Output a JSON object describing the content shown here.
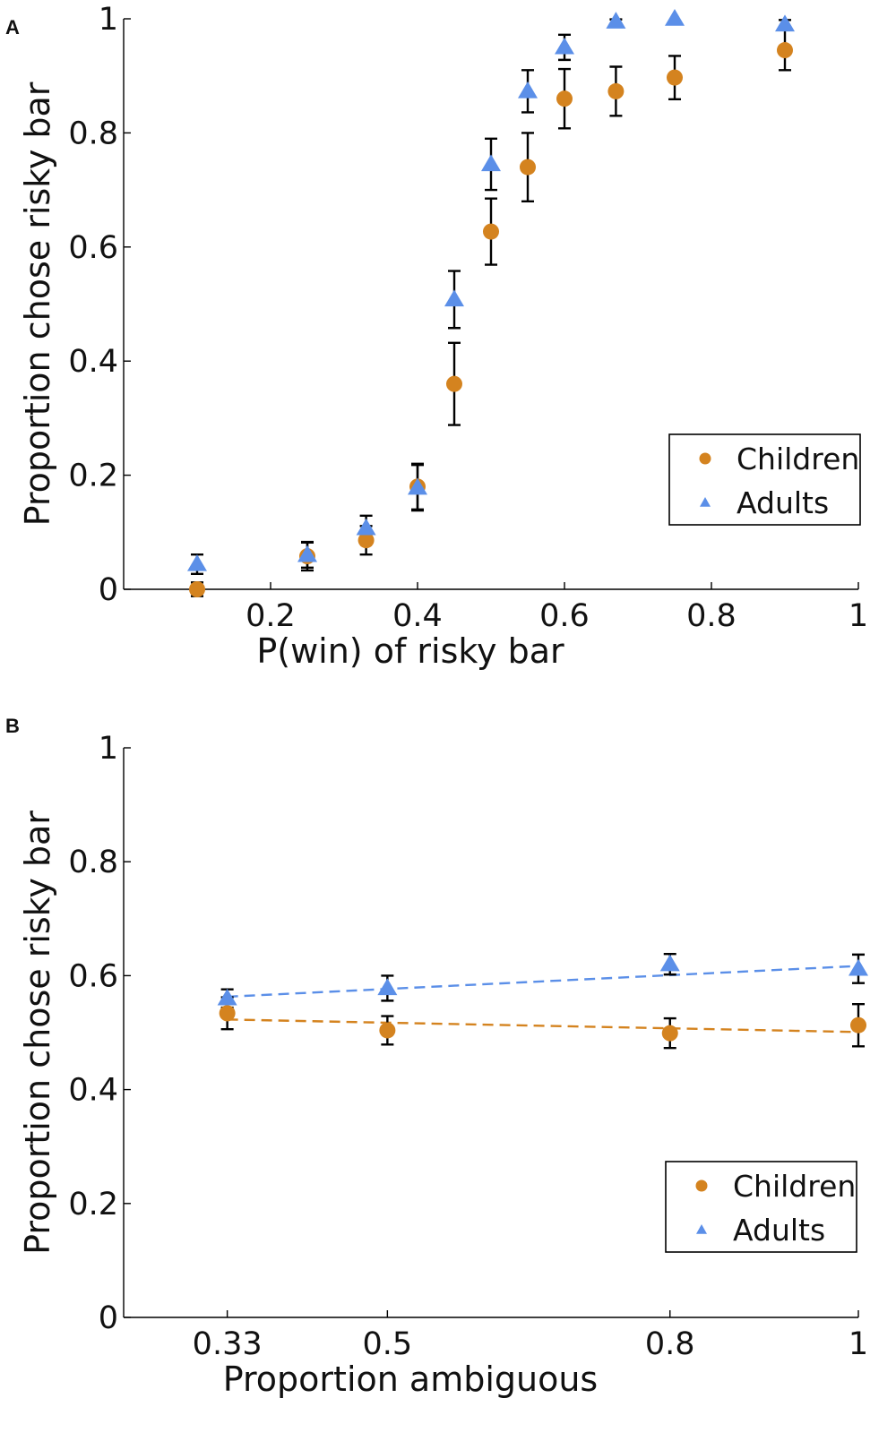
{
  "chart_data": [
    {
      "panel": "A",
      "type": "scatter",
      "xlabel": "P(win) of risky bar",
      "ylabel": "Proportion chose risky bar",
      "xlim": [
        0,
        1
      ],
      "ylim": [
        0,
        1
      ],
      "xticks": [
        0.2,
        0.4,
        0.6,
        0.8,
        1
      ],
      "xtick_labels": [
        "0.2",
        "0.4",
        "0.6",
        "0.8",
        "1"
      ],
      "yticks": [
        0,
        0.2,
        0.4,
        0.6,
        0.8,
        1
      ],
      "ytick_labels": [
        "0",
        "0.2",
        "0.4",
        "0.6",
        "0.8",
        "1"
      ],
      "legend_position": "right",
      "series": [
        {
          "name": "Children",
          "marker": "circle",
          "color": "#d4831f",
          "x": [
            0.1,
            0.25,
            0.33,
            0.4,
            0.45,
            0.5,
            0.55,
            0.6,
            0.67,
            0.75,
            0.9
          ],
          "y": [
            0.0,
            0.058,
            0.086,
            0.18,
            0.36,
            0.627,
            0.74,
            0.86,
            0.873,
            0.897,
            0.945
          ],
          "err": [
            0.012,
            0.025,
            0.025,
            0.04,
            0.072,
            0.058,
            0.06,
            0.052,
            0.043,
            0.038,
            0.035
          ]
        },
        {
          "name": "Adults",
          "marker": "triangle",
          "color": "#5b8fe8",
          "x": [
            0.1,
            0.25,
            0.33,
            0.4,
            0.45,
            0.5,
            0.55,
            0.6,
            0.67,
            0.75,
            0.9
          ],
          "y": [
            0.044,
            0.06,
            0.107,
            0.178,
            0.508,
            0.745,
            0.873,
            0.95,
            0.995,
            1.0,
            0.99
          ],
          "err": [
            0.017,
            0.022,
            0.022,
            0.04,
            0.05,
            0.045,
            0.037,
            0.022,
            0.004,
            0.0,
            0.008
          ]
        }
      ]
    },
    {
      "panel": "B",
      "type": "scatter",
      "xlabel": "Proportion ambiguous",
      "ylabel": "Proportion chose risky bar",
      "xlim": [
        0.22,
        1
      ],
      "ylim": [
        0,
        1
      ],
      "xticks": [
        0.33,
        0.5,
        0.8,
        1
      ],
      "xtick_labels": [
        "0.33",
        "0.5",
        "0.8",
        "1"
      ],
      "yticks": [
        0,
        0.2,
        0.4,
        0.6,
        0.8,
        1
      ],
      "ytick_labels": [
        "0",
        "0.2",
        "0.4",
        "0.6",
        "0.8",
        "1"
      ],
      "legend_position": "lower right",
      "series": [
        {
          "name": "Children",
          "marker": "circle",
          "color": "#d4831f",
          "x": [
            0.33,
            0.5,
            0.8,
            1
          ],
          "y": [
            0.534,
            0.504,
            0.499,
            0.513
          ],
          "err": [
            0.028,
            0.025,
            0.026,
            0.037
          ],
          "fit": [
            [
              0.33,
              0.523
            ],
            [
              1,
              0.501
            ]
          ]
        },
        {
          "name": "Adults",
          "marker": "triangle",
          "color": "#5b8fe8",
          "x": [
            0.33,
            0.5,
            0.8,
            1
          ],
          "y": [
            0.56,
            0.578,
            0.62,
            0.612
          ],
          "err": [
            0.016,
            0.022,
            0.018,
            0.025
          ],
          "fit": [
            [
              0.33,
              0.563
            ],
            [
              1,
              0.617
            ]
          ]
        }
      ]
    }
  ]
}
